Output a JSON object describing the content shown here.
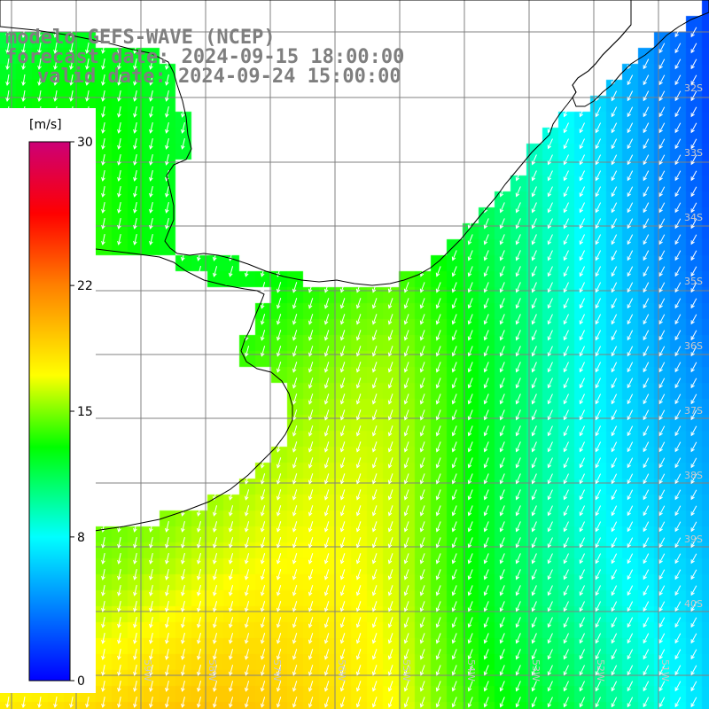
{
  "title": {
    "line1": "modelo GEFS-WAVE (NCEP)",
    "line2": "forecast date: 2024-09-15 18:00:00",
    "line3": "valid date: 2024-09-24 15:00:00"
  },
  "colorbar": {
    "unit": "[m/s]",
    "min": 0,
    "max": 30,
    "tick_labels": [
      "30",
      "22",
      "15",
      "8",
      "0"
    ],
    "tick_values": [
      30,
      22,
      15,
      8,
      0
    ],
    "colors": [
      "#0000ff",
      "#00ffff",
      "#00ff00",
      "#ffff00",
      "#ff0000",
      "#cc0077"
    ]
  },
  "map": {
    "lon_range": [
      -61,
      -49
    ],
    "lat_range": [
      -41,
      -29.5
    ],
    "lon_labels": [
      "61W",
      "60W",
      "59W",
      "58W",
      "57W",
      "56W",
      "55W",
      "54W",
      "53W",
      "52W",
      "51W",
      "50W"
    ],
    "lat_labels": [
      "32S",
      "33S",
      "34S",
      "35S",
      "36S",
      "37S",
      "38S",
      "39S",
      "40S"
    ],
    "grid": true,
    "field": "10 m wind speed with direction arrows"
  },
  "colors": {
    "title_text": "#7f7f7f",
    "grid": "#808080",
    "coast": "#000000",
    "arrows": "#ffffff",
    "axis_labels": "#c8c8c8"
  }
}
